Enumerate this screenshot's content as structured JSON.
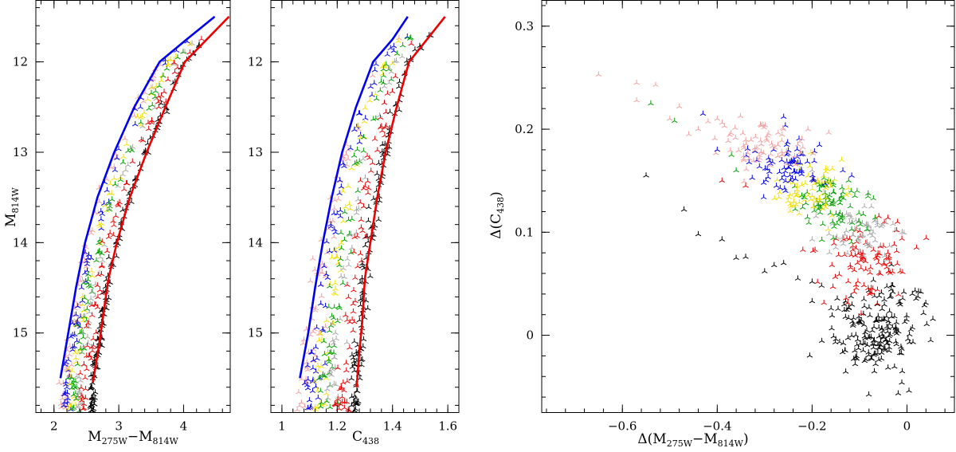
{
  "colors": {
    "blue": "#0000ee",
    "red": "#ee0000",
    "black": "#000000",
    "pink": "#f4a0a0",
    "yellow": "#f2e000",
    "green": "#00a000",
    "gray": "#a8a8a8"
  },
  "chart_data": [
    {
      "type": "scatter",
      "id": "panel-a",
      "xlabel_main": "M",
      "xlabel_sub1": "275W",
      "xlabel_mid": "−M",
      "xlabel_sub2": "814W",
      "ylabel_main": "M",
      "ylabel_sub": "814W",
      "xlim": [
        1.72,
        4.72
      ],
      "ylim": [
        15.88,
        11.32
      ],
      "xticks_major": [
        2,
        3,
        4
      ],
      "xtick_labels": [
        "2",
        "3",
        "4"
      ],
      "yticks_major": [
        12,
        13,
        14,
        15
      ],
      "ytick_labels": [
        "12",
        "13",
        "14",
        "15"
      ],
      "fiducial_lines": [
        {
          "name": "blue fiducial",
          "color": "blue",
          "points": [
            [
              2.1,
              15.5
            ],
            [
              2.22,
              15.0
            ],
            [
              2.34,
              14.5
            ],
            [
              2.48,
              14.0
            ],
            [
              2.67,
              13.5
            ],
            [
              2.93,
              13.0
            ],
            [
              3.24,
              12.5
            ],
            [
              3.63,
              12.0
            ],
            [
              4.05,
              11.75
            ],
            [
              4.48,
              11.5
            ]
          ]
        },
        {
          "name": "red fiducial",
          "color": "red",
          "points": [
            [
              2.6,
              15.55
            ],
            [
              2.68,
              15.2
            ],
            [
              2.74,
              14.9
            ],
            [
              2.84,
              14.4
            ],
            [
              2.97,
              14.0
            ],
            [
              3.17,
              13.5
            ],
            [
              3.43,
              13.0
            ],
            [
              3.72,
              12.5
            ],
            [
              4.02,
              12.0
            ],
            [
              4.7,
              11.5
            ]
          ]
        }
      ]
    },
    {
      "type": "scatter",
      "id": "panel-b",
      "xlabel_main": "C",
      "xlabel_sub": "438",
      "xlim": [
        0.96,
        1.64
      ],
      "ylim": [
        15.88,
        11.32
      ],
      "xticks_major": [
        1,
        1.2,
        1.4,
        1.6
      ],
      "xtick_labels": [
        "1",
        "1.2",
        "1.4",
        "1.6"
      ],
      "yticks_major": [
        12,
        13,
        14,
        15
      ],
      "ytick_labels": [
        "12",
        "13",
        "14",
        "15"
      ],
      "fiducial_lines": [
        {
          "name": "blue fiducial",
          "color": "blue",
          "points": [
            [
              1.065,
              15.5
            ],
            [
              1.095,
              15.0
            ],
            [
              1.12,
              14.5
            ],
            [
              1.148,
              14.0
            ],
            [
              1.18,
              13.5
            ],
            [
              1.218,
              13.0
            ],
            [
              1.268,
              12.5
            ],
            [
              1.33,
              12.0
            ],
            [
              1.4,
              11.75
            ],
            [
              1.455,
              11.5
            ]
          ]
        },
        {
          "name": "red fiducial",
          "color": "red",
          "points": [
            [
              1.27,
              15.6
            ],
            [
              1.28,
              15.2
            ],
            [
              1.29,
              14.9
            ],
            [
              1.3,
              14.4
            ],
            [
              1.32,
              14.0
            ],
            [
              1.345,
              13.5
            ],
            [
              1.375,
              13.0
            ],
            [
              1.415,
              12.5
            ],
            [
              1.46,
              12.0
            ],
            [
              1.525,
              11.75
            ],
            [
              1.59,
              11.5
            ]
          ]
        }
      ]
    },
    {
      "type": "scatter",
      "id": "panel-c",
      "xlabel_pre": "Δ(M",
      "xlabel_sub1": "275W",
      "xlabel_mid": "−M",
      "xlabel_sub2": "814W",
      "xlabel_post": ")",
      "ylabel_pre": "Δ(C",
      "ylabel_sub": "438",
      "ylabel_post": ")",
      "xlim": [
        -0.77,
        0.1
      ],
      "ylim": [
        -0.075,
        0.325
      ],
      "xticks_major": [
        -0.6,
        -0.4,
        -0.2,
        0
      ],
      "xtick_labels": [
        "−0.6",
        "−0.4",
        "−0.2",
        "0"
      ],
      "yticks_major": [
        0,
        0.1,
        0.2,
        0.3
      ],
      "ytick_labels": [
        "0",
        "0.1",
        "0.2",
        "0.3"
      ],
      "groups": [
        {
          "name": "black",
          "color": "black",
          "cx": -0.06,
          "cy": 0.005,
          "sx": 0.05,
          "sy": 0.022,
          "n": 190
        },
        {
          "name": "red",
          "color": "red",
          "cx": -0.1,
          "cy": 0.075,
          "sx": 0.045,
          "sy": 0.02,
          "n": 95
        },
        {
          "name": "gray",
          "color": "gray",
          "cx": -0.09,
          "cy": 0.1,
          "sx": 0.035,
          "sy": 0.012,
          "n": 60
        },
        {
          "name": "green",
          "color": "green",
          "cx": -0.15,
          "cy": 0.125,
          "sx": 0.035,
          "sy": 0.015,
          "n": 85
        },
        {
          "name": "yellow",
          "color": "yellow",
          "cx": -0.2,
          "cy": 0.14,
          "sx": 0.035,
          "sy": 0.014,
          "n": 70
        },
        {
          "name": "blue",
          "color": "blue",
          "cx": -0.25,
          "cy": 0.165,
          "sx": 0.04,
          "sy": 0.015,
          "n": 75
        },
        {
          "name": "pink",
          "color": "pink",
          "cx": -0.3,
          "cy": 0.185,
          "sx": 0.045,
          "sy": 0.013,
          "n": 75
        }
      ],
      "sparse_points": [
        {
          "color": "pink",
          "points": [
            [
              -0.65,
              0.253
            ],
            [
              -0.57,
              0.245
            ],
            [
              -0.53,
              0.243
            ],
            [
              -0.57,
              0.228
            ],
            [
              -0.48,
              0.222
            ],
            [
              -0.5,
              0.21
            ],
            [
              -0.44,
              0.2
            ],
            [
              -0.46,
              0.195
            ],
            [
              -0.4,
              0.21
            ]
          ]
        },
        {
          "color": "green",
          "points": [
            [
              -0.54,
              0.225
            ],
            [
              -0.49,
              0.208
            ],
            [
              -0.37,
              0.175
            ],
            [
              -0.36,
              0.16
            ]
          ]
        },
        {
          "color": "blue",
          "points": [
            [
              -0.43,
              0.215
            ],
            [
              -0.4,
              0.18
            ],
            [
              -0.26,
              0.212
            ]
          ]
        },
        {
          "color": "black",
          "points": [
            [
              -0.55,
              0.155
            ],
            [
              -0.47,
              0.122
            ],
            [
              -0.44,
              0.098
            ],
            [
              -0.39,
              0.093
            ],
            [
              -0.36,
              0.075
            ],
            [
              -0.34,
              0.076
            ],
            [
              -0.3,
              0.062
            ],
            [
              -0.28,
              0.068
            ],
            [
              -0.26,
              0.07
            ],
            [
              -0.23,
              0.055
            ],
            [
              -0.2,
              0.052
            ],
            [
              -0.18,
              0.048
            ],
            [
              -0.2,
              0.033
            ],
            [
              -0.16,
              0.026
            ],
            [
              0.05,
              -0.005
            ],
            [
              -0.01,
              -0.035
            ],
            [
              -0.11,
              -0.015
            ],
            [
              -0.03,
              0.042
            ]
          ]
        },
        {
          "color": "red",
          "points": [
            [
              -0.39,
              0.15
            ],
            [
              -0.34,
              0.145
            ],
            [
              0.02,
              0.085
            ],
            [
              -0.02,
              0.11
            ],
            [
              -0.04,
              0.114
            ]
          ]
        },
        {
          "color": "gray",
          "points": [
            [
              -0.01,
              0.1
            ],
            [
              -0.2,
              0.093
            ],
            [
              -0.15,
              0.085
            ],
            [
              -0.2,
              0.16
            ]
          ]
        }
      ]
    }
  ]
}
